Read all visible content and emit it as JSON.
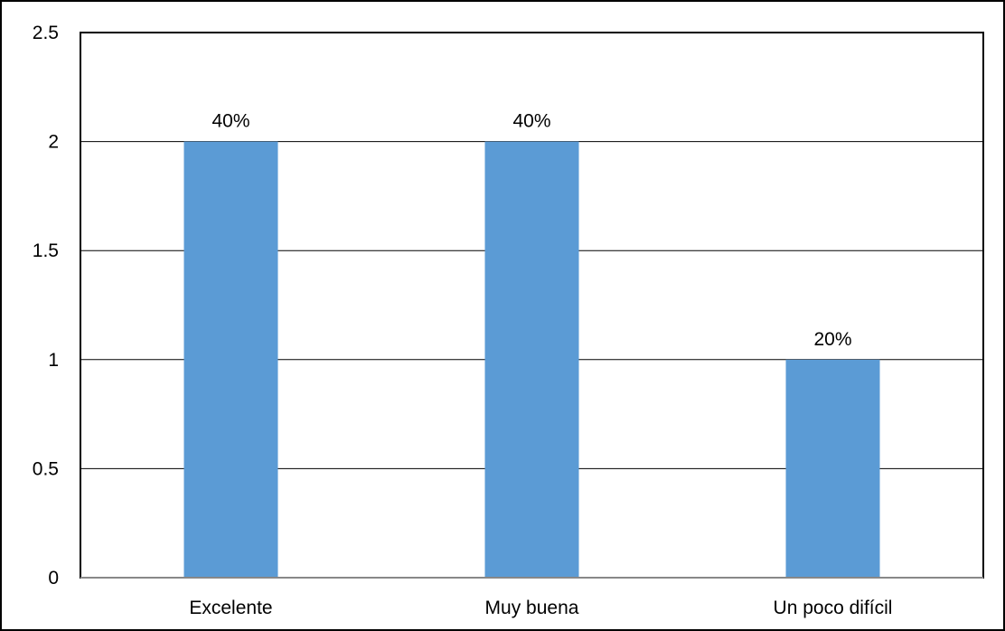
{
  "chart_data": {
    "type": "bar",
    "categories": [
      "Excelente",
      "Muy buena",
      "Un poco difícil"
    ],
    "values": [
      2,
      2,
      1
    ],
    "data_labels": [
      "40%",
      "40%",
      "20%"
    ],
    "title": "",
    "xlabel": "",
    "ylabel": "",
    "ylim": [
      0,
      2.5
    ],
    "yticks": [
      0,
      0.5,
      1,
      1.5,
      2,
      2.5
    ],
    "ytick_labels": [
      "0",
      "0.5",
      "1",
      "1.5",
      "2",
      "2.5"
    ],
    "grid": true,
    "legend": "none",
    "bar_color": "#5B9BD5",
    "gridline_color": "#000000",
    "frame_color": "#000000"
  }
}
